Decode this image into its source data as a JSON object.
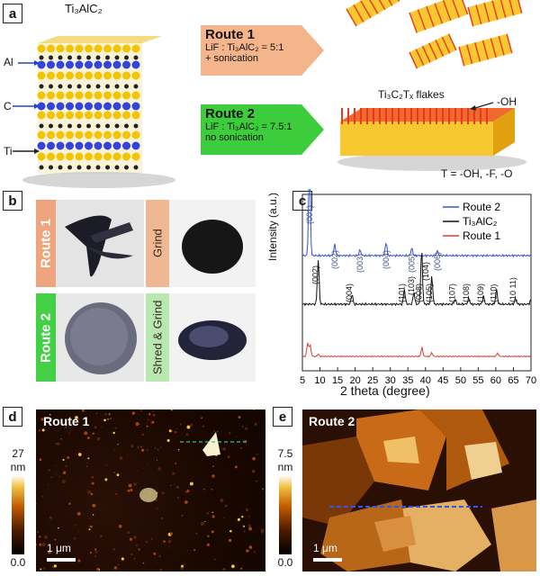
{
  "panels": {
    "a": {
      "label": "a",
      "ti3alc2": "Ti₃AlC₂",
      "atoms": {
        "al": "Al",
        "c": "C",
        "ti": "Ti"
      },
      "route1": {
        "title": "Route 1",
        "line1": "LiF : Ti₃AlC₂ = 5:1",
        "line2": "+ sonication"
      },
      "route2": {
        "title": "Route 2",
        "line1": "LiF : Ti₃AlC₂ = 7.5:1",
        "line2": "no sonication"
      },
      "flakes": "Ti₃C₂Tₓ flakes",
      "oh": "-OH",
      "t_def": "T = -OH, -F, -O"
    },
    "b": {
      "label": "b",
      "route1": "Route 1",
      "grind": "Grind",
      "route2": "Route 2",
      "shred": "Shred & Grind"
    },
    "c": {
      "label": "c",
      "ylabel": "Intensity (a.u.)",
      "xlabel": "2 theta (degree)",
      "legend": [
        "Route 2",
        "Ti₃AlC₂",
        "Route 1"
      ],
      "peaks_route2": [
        "(001)",
        "(002)",
        "(003)",
        "(004)",
        "(005)",
        "(006)"
      ],
      "peaks_ti3alc2": [
        "(002)",
        "(004)",
        "(101)",
        "(103)",
        "(008)",
        "(104)",
        "(105)",
        "(107)",
        "(108)",
        "(109)",
        "(110)",
        "(10 11)"
      ]
    },
    "d": {
      "label": "d",
      "title": "Route 1",
      "cb_max": "27",
      "cb_unit": "nm",
      "cb_min": "0.0",
      "scale": "1 μm"
    },
    "e": {
      "label": "e",
      "title": "Route 2",
      "cb_max": "7.5",
      "cb_unit": "nm",
      "cb_min": "0.0",
      "scale": "1 μm"
    }
  },
  "chart_data": {
    "type": "line",
    "xlabel": "2 theta (degree)",
    "ylabel": "Intensity (a.u.)",
    "xlim": [
      5,
      70
    ],
    "xticks": [
      5,
      10,
      15,
      20,
      25,
      30,
      35,
      40,
      45,
      50,
      55,
      60,
      65,
      70
    ],
    "series": [
      {
        "name": "Route 2",
        "color": "#3355cc",
        "peaks": [
          [
            7.0,
            1.0
          ],
          [
            14.2,
            0.12
          ],
          [
            21.4,
            0.06
          ],
          [
            28.8,
            0.14
          ],
          [
            36.1,
            0.08
          ],
          [
            43.4,
            0.05
          ]
        ]
      },
      {
        "name": "Ti₃AlC₂",
        "color": "#111111",
        "peaks": [
          [
            9.5,
            0.45
          ],
          [
            19.1,
            0.1
          ],
          [
            34.0,
            0.15
          ],
          [
            36.7,
            0.12
          ],
          [
            38.9,
            0.55
          ],
          [
            41.8,
            0.28
          ],
          [
            48.4,
            0.05
          ],
          [
            52.3,
            0.06
          ],
          [
            56.5,
            0.08
          ],
          [
            60.2,
            0.15
          ],
          [
            65.6,
            0.06
          ],
          [
            70.0,
            0.05
          ]
        ]
      },
      {
        "name": "Route 1",
        "color": "#e03c31",
        "peaks": [
          [
            6.5,
            0.3
          ],
          [
            7.2,
            0.25
          ],
          [
            9.5,
            0.05
          ],
          [
            39.0,
            0.2
          ],
          [
            41.8,
            0.08
          ],
          [
            60.5,
            0.07
          ]
        ]
      }
    ]
  },
  "colors": {
    "route1_arrow": "#f0a878",
    "route2_arrow": "#40d040",
    "al": "#3344d8",
    "c": "#222222",
    "ti": "#f5c400"
  }
}
